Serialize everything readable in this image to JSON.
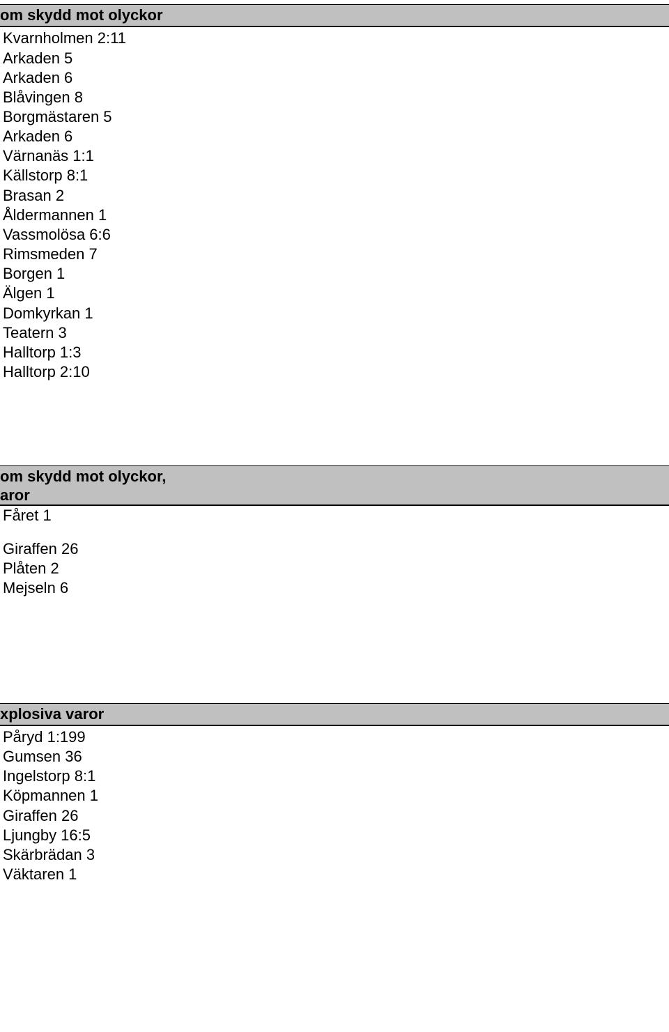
{
  "sections": [
    {
      "header_lines": [
        "om skydd mot olyckor"
      ],
      "items": [
        "Kvarnholmen 2:11",
        "Arkaden 5",
        "Arkaden 6",
        "Blåvingen 8",
        "Borgmästaren 5",
        "Arkaden 6",
        "Värnanäs 1:1",
        "Källstorp 8:1",
        "Brasan 2",
        "Åldermannen 1",
        "Vassmolösa 6:6",
        "Rimsmeden 7",
        "Borgen 1",
        "Älgen 1",
        "Domkyrkan 1",
        "Teatern 3",
        "Halltorp 1:3",
        "Halltorp 2:10"
      ]
    },
    {
      "header_lines": [
        " om skydd mot olyckor,",
        "aror"
      ],
      "first_item_inline": "Fåret 1",
      "items": [
        "Giraffen 26",
        "Plåten 2",
        "Mejseln 6"
      ]
    },
    {
      "header_lines": [
        "xplosiva varor"
      ],
      "items": [
        "Påryd 1:199",
        "Gumsen 36",
        "Ingelstorp 8:1",
        "Köpmannen 1",
        "Giraffen 26",
        "Ljungby 16:5",
        "Skärbrädan 3",
        "Väktaren 1"
      ]
    }
  ]
}
